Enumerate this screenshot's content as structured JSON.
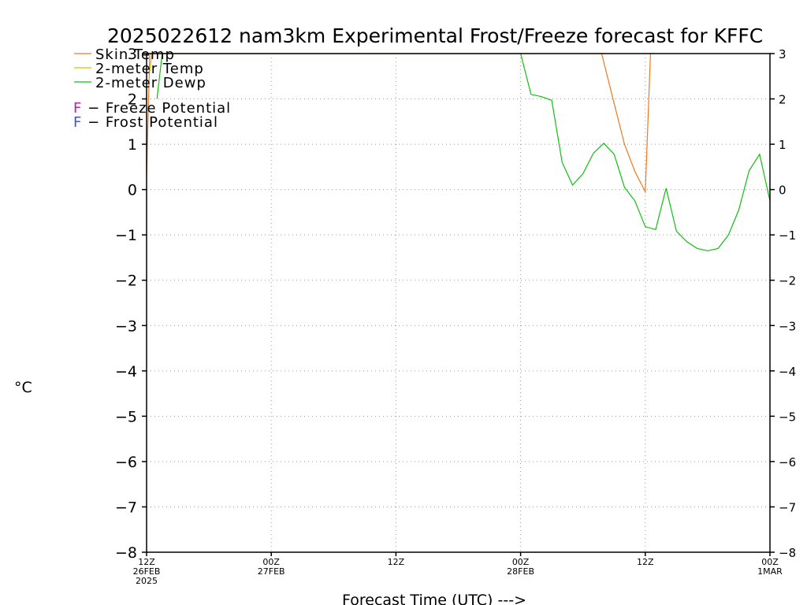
{
  "chart_data": {
    "type": "line",
    "title": "2025022612 nam3km Experimental Frost/Freeze forecast for KFFC",
    "xlabel": "Forecast Time (UTC) --->",
    "ylabel": "°C",
    "ylim": [
      -8,
      3
    ],
    "yticks": [
      3,
      2,
      1,
      0,
      -1,
      -2,
      -3,
      -4,
      -5,
      -6,
      -7,
      -8
    ],
    "ytick_labels": [
      "3",
      "2",
      "1",
      "0",
      "−1",
      "−2",
      "−3",
      "−4",
      "−5",
      "−6",
      "−7",
      "−8"
    ],
    "xlim": [
      0,
      60
    ],
    "x_units": "hours after 2025-02-26 12Z",
    "xticks": [
      {
        "x": 0,
        "lines": [
          "12Z",
          "26FEB",
          "2025"
        ]
      },
      {
        "x": 12,
        "lines": [
          "00Z",
          "27FEB"
        ]
      },
      {
        "x": 24,
        "lines": [
          "12Z"
        ]
      },
      {
        "x": 36,
        "lines": [
          "00Z",
          "28FEB"
        ]
      },
      {
        "x": 48,
        "lines": [
          "12Z"
        ]
      },
      {
        "x": 60,
        "lines": [
          "00Z",
          "1MAR"
        ]
      }
    ],
    "grid": true,
    "legend": {
      "placement": "top-left",
      "series_entries": [
        {
          "label": "Skin Temp",
          "color": "#f07820"
        },
        {
          "label": "2-meter Temp",
          "color": "#d8c000"
        },
        {
          "label": "2-meter Dewp",
          "color": "#10c010"
        }
      ],
      "flag_entries": [
        {
          "letter": "F",
          "label": " − Freeze Potential",
          "color": "#c020a0"
        },
        {
          "letter": "F",
          "label": " − Frost Potential",
          "color": "#4050e0"
        }
      ]
    },
    "series": [
      {
        "name": "Skin Temp",
        "color": "#f07820",
        "x": [
          0,
          0.3,
          43.8,
          45,
          46,
          47,
          48,
          48.5
        ],
        "y": [
          0.3,
          3.0,
          3.0,
          1.9,
          1.0,
          0.4,
          -0.05,
          3.0
        ]
      },
      {
        "name": "2-meter Temp",
        "color": "#d8c000",
        "x": [
          0.3,
          0.5
        ],
        "y": [
          2.6,
          3.0
        ]
      },
      {
        "name": "2-meter Dewp",
        "color": "#10c010",
        "x": [
          1.0,
          1.5,
          36,
          37,
          38,
          39,
          40,
          41,
          42,
          43,
          44,
          45,
          46,
          47,
          48,
          49,
          50,
          51,
          52,
          53,
          54,
          55,
          56,
          57,
          58,
          59,
          60
        ],
        "y": [
          2.0,
          3.0,
          3.0,
          2.1,
          2.05,
          1.97,
          0.6,
          0.1,
          0.35,
          0.8,
          1.02,
          0.78,
          0.05,
          -0.25,
          -0.82,
          -0.88,
          0.03,
          -0.92,
          -1.15,
          -1.3,
          -1.35,
          -1.3,
          -1.0,
          -0.45,
          0.42,
          0.78,
          -0.25
        ]
      }
    ]
  }
}
